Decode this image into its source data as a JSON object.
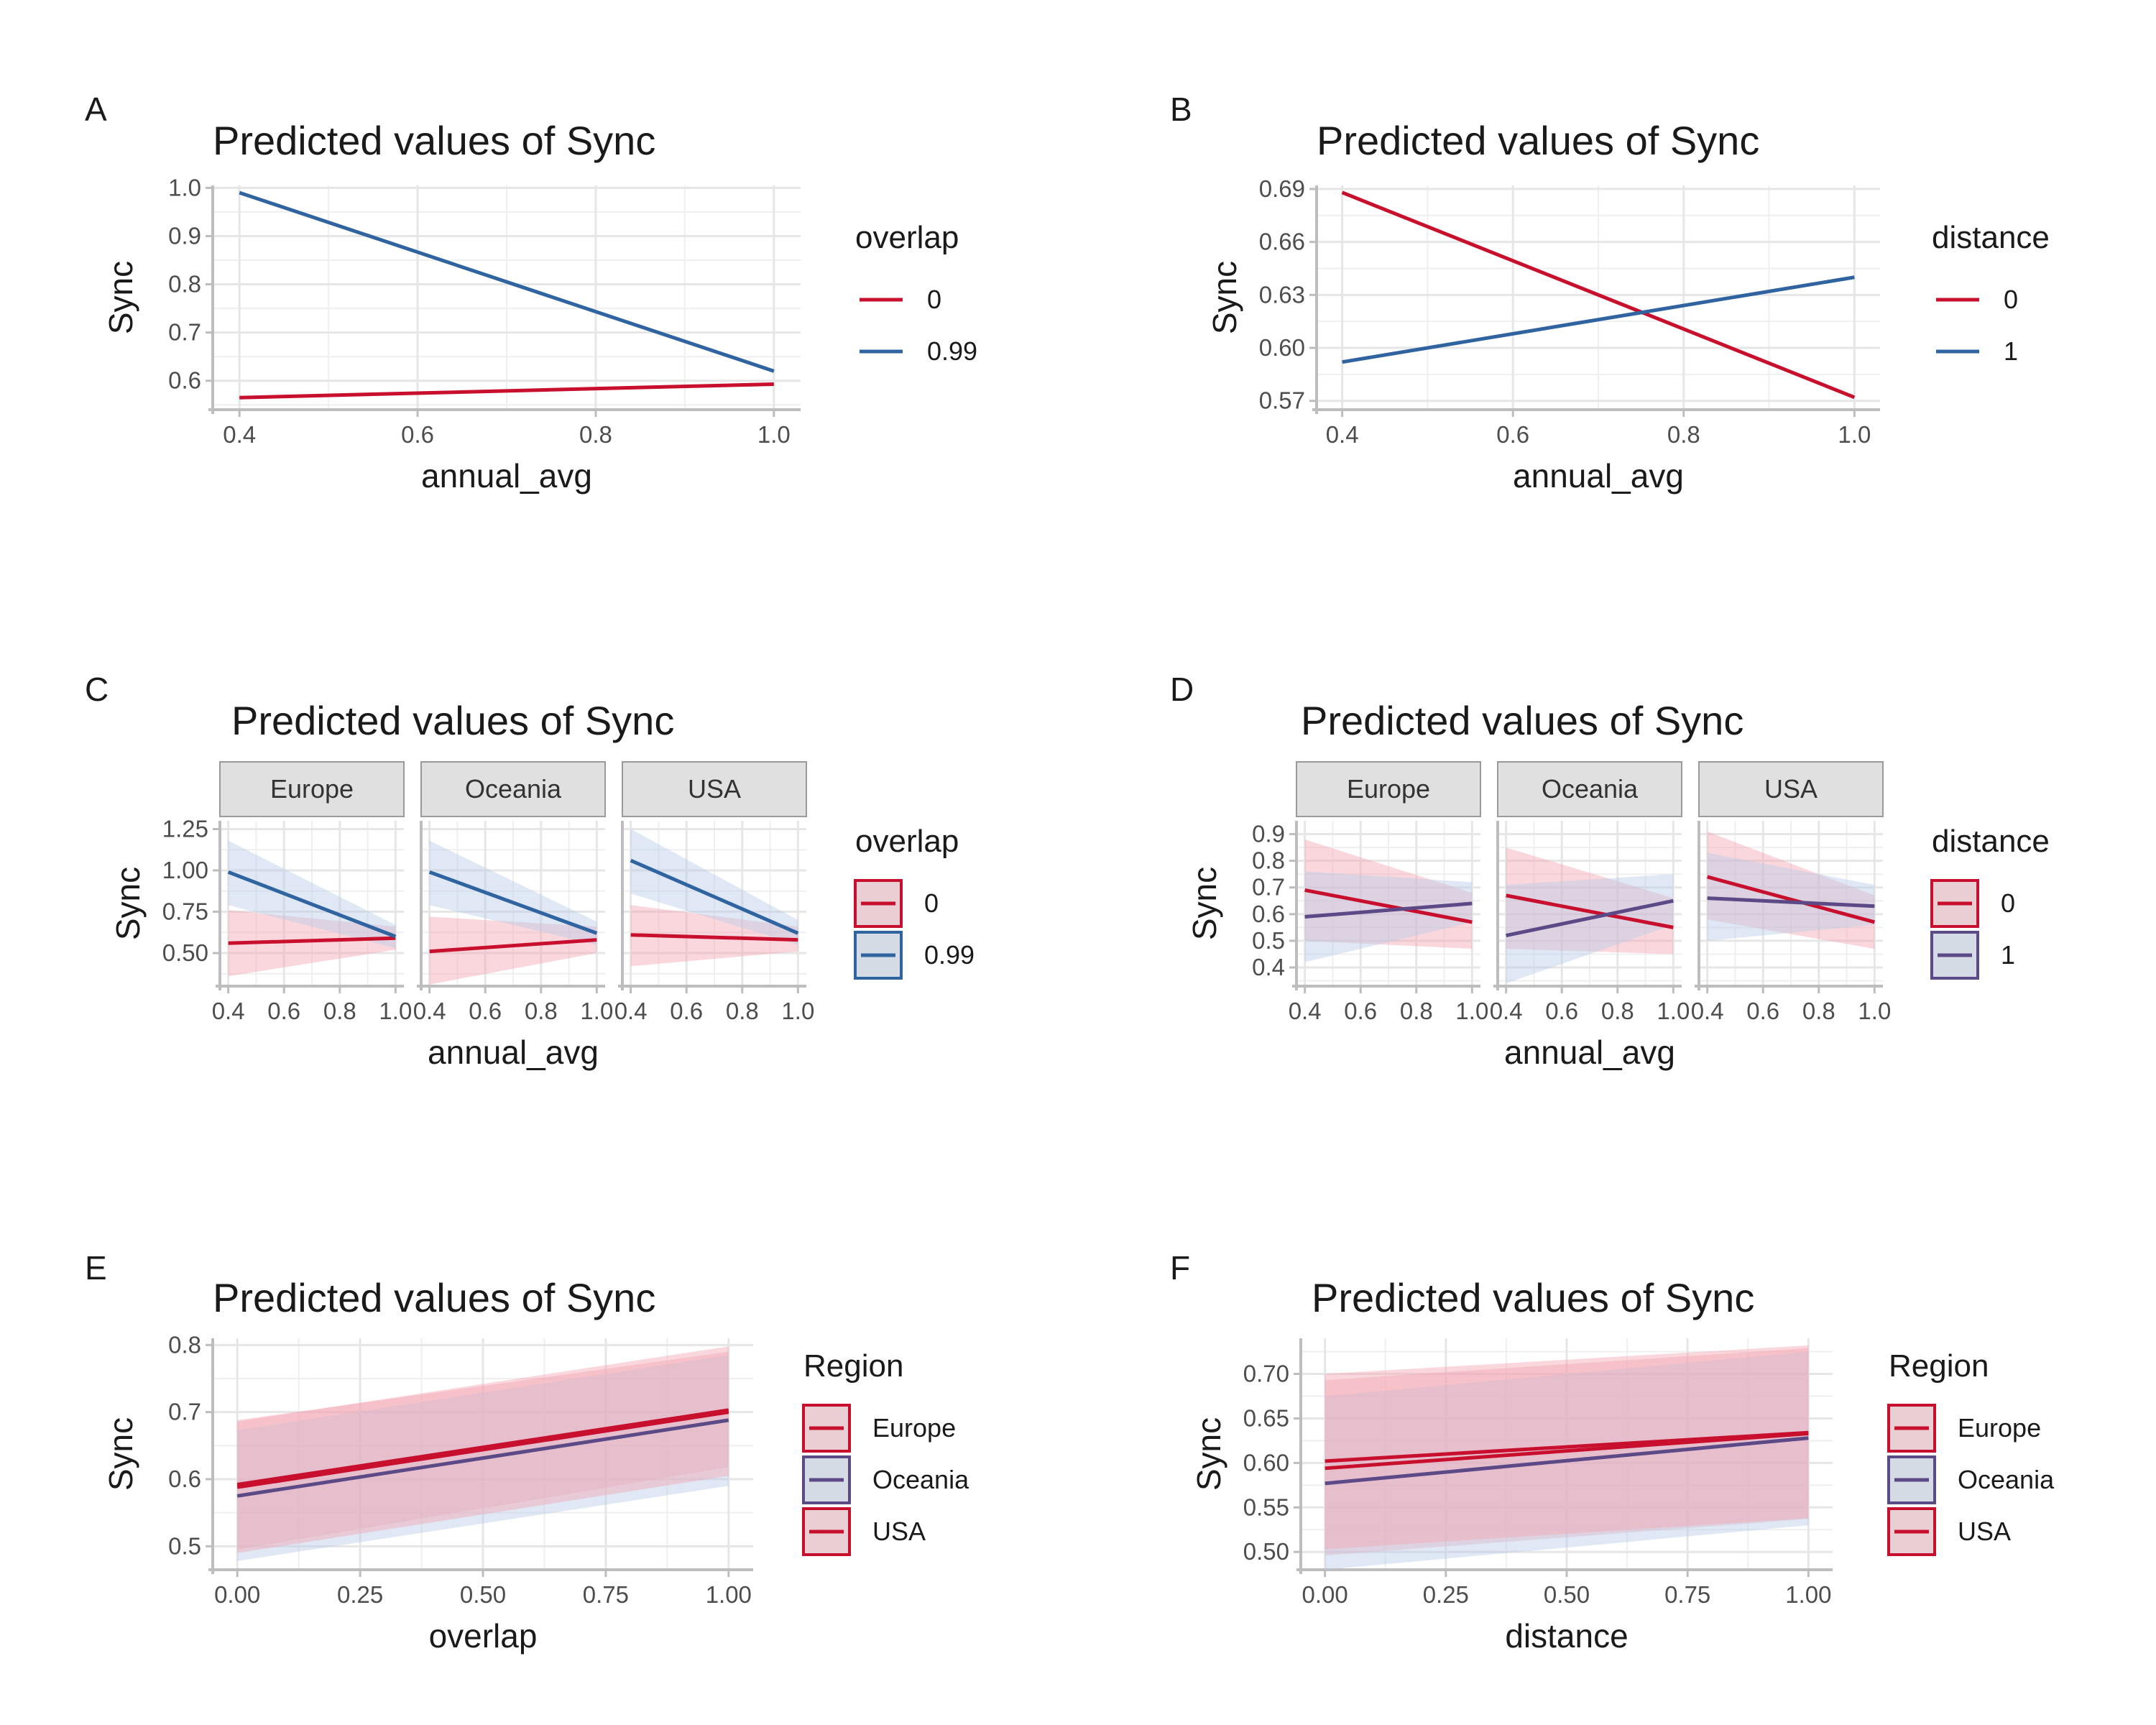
{
  "colors": {
    "red": "#c8102e",
    "blue": "#2f64a0",
    "purple": "#5b4a86",
    "band_red": "#f4a7b4",
    "band_blue": "#b9cbe6",
    "grid": "#e6e6e6",
    "axis": "#bdbdbd",
    "strip_fill": "#e0e0e0",
    "strip_border": "#9a9a9a",
    "tick_text": "#4d4d4d",
    "text": "#1a1a1a"
  },
  "chart_data": [
    {
      "panel": "A",
      "type": "line",
      "title": "Predicted values of Sync",
      "xlabel": "annual_avg",
      "ylabel": "Sync",
      "xlim": [
        0.37,
        1.03
      ],
      "ylim": [
        0.54,
        1.005
      ],
      "xticks": [
        0.4,
        0.6,
        0.8,
        1.0
      ],
      "xtick_labels": [
        "0.4",
        "0.6",
        "0.8",
        "1.0"
      ],
      "yticks": [
        0.6,
        0.7,
        0.8,
        0.9,
        1.0
      ],
      "ytick_labels": [
        "0.6",
        "0.7",
        "0.8",
        "0.9",
        "1.0"
      ],
      "legend_title": "overlap",
      "legend_style": "line",
      "series": [
        {
          "name": "0",
          "color": "#c8102e",
          "x": [
            0.4,
            1.0
          ],
          "y": [
            0.565,
            0.593
          ]
        },
        {
          "name": "0.99",
          "color": "#2f64a0",
          "x": [
            0.4,
            1.0
          ],
          "y": [
            0.99,
            0.62
          ]
        }
      ]
    },
    {
      "panel": "B",
      "type": "line",
      "title": "Predicted values of Sync",
      "xlabel": "annual_avg",
      "ylabel": "Sync",
      "xlim": [
        0.37,
        1.03
      ],
      "ylim": [
        0.565,
        0.692
      ],
      "xticks": [
        0.4,
        0.6,
        0.8,
        1.0
      ],
      "xtick_labels": [
        "0.4",
        "0.6",
        "0.8",
        "1.0"
      ],
      "yticks": [
        0.57,
        0.6,
        0.63,
        0.66,
        0.69
      ],
      "ytick_labels": [
        "0.57",
        "0.60",
        "0.63",
        "0.66",
        "0.69"
      ],
      "legend_title": "distance",
      "legend_style": "line",
      "series": [
        {
          "name": "0",
          "color": "#c8102e",
          "x": [
            0.4,
            1.0
          ],
          "y": [
            0.688,
            0.572
          ]
        },
        {
          "name": "1",
          "color": "#2f64a0",
          "x": [
            0.4,
            1.0
          ],
          "y": [
            0.592,
            0.64
          ]
        }
      ]
    },
    {
      "panel": "C",
      "type": "line",
      "title": "Predicted values of Sync",
      "xlabel": "annual_avg",
      "ylabel": "Sync",
      "xlim": [
        0.37,
        1.03
      ],
      "ylim": [
        0.3,
        1.3
      ],
      "xticks": [
        0.4,
        0.6,
        0.8,
        1.0
      ],
      "xtick_labels": [
        "0.4",
        "0.6",
        "0.8",
        "1.0"
      ],
      "yticks": [
        0.5,
        0.75,
        1.0,
        1.25
      ],
      "ytick_labels": [
        "0.50",
        "0.75",
        "1.00",
        "1.25"
      ],
      "legend_title": "overlap",
      "legend_style": "box",
      "facets": [
        {
          "name": "Europe",
          "series": [
            {
              "name": "0",
              "color": "#c8102e",
              "band": "#f4a7b4",
              "x": [
                0.4,
                1.0
              ],
              "y": [
                0.56,
                0.59
              ],
              "lo": [
                0.36,
                0.52
              ],
              "hi": [
                0.76,
                0.66
              ]
            },
            {
              "name": "0.99",
              "color": "#2f64a0",
              "band": "#b9cbe6",
              "x": [
                0.4,
                1.0
              ],
              "y": [
                0.99,
                0.6
              ],
              "lo": [
                0.79,
                0.53
              ],
              "hi": [
                1.18,
                0.67
              ]
            }
          ]
        },
        {
          "name": "Oceania",
          "series": [
            {
              "name": "0",
              "color": "#c8102e",
              "band": "#f4a7b4",
              "x": [
                0.4,
                1.0
              ],
              "y": [
                0.51,
                0.58
              ],
              "lo": [
                0.31,
                0.5
              ],
              "hi": [
                0.72,
                0.66
              ]
            },
            {
              "name": "0.99",
              "color": "#2f64a0",
              "band": "#b9cbe6",
              "x": [
                0.4,
                1.0
              ],
              "y": [
                0.99,
                0.62
              ],
              "lo": [
                0.79,
                0.55
              ],
              "hi": [
                1.18,
                0.69
              ]
            }
          ]
        },
        {
          "name": "USA",
          "series": [
            {
              "name": "0",
              "color": "#c8102e",
              "band": "#f4a7b4",
              "x": [
                0.4,
                1.0
              ],
              "y": [
                0.61,
                0.58
              ],
              "lo": [
                0.42,
                0.51
              ],
              "hi": [
                0.79,
                0.66
              ]
            },
            {
              "name": "0.99",
              "color": "#2f64a0",
              "band": "#b9cbe6",
              "x": [
                0.4,
                1.0
              ],
              "y": [
                1.06,
                0.62
              ],
              "lo": [
                0.86,
                0.55
              ],
              "hi": [
                1.25,
                0.7
              ]
            }
          ]
        }
      ]
    },
    {
      "panel": "D",
      "type": "line",
      "title": "Predicted values of Sync",
      "xlabel": "annual_avg",
      "ylabel": "Sync",
      "xlim": [
        0.37,
        1.03
      ],
      "ylim": [
        0.33,
        0.95
      ],
      "xticks": [
        0.4,
        0.6,
        0.8,
        1.0
      ],
      "xtick_labels": [
        "0.4",
        "0.6",
        "0.8",
        "1.0"
      ],
      "yticks": [
        0.4,
        0.5,
        0.6,
        0.7,
        0.8,
        0.9
      ],
      "ytick_labels": [
        "0.4",
        "0.5",
        "0.6",
        "0.7",
        "0.8",
        "0.9"
      ],
      "legend_title": "distance",
      "legend_style": "box",
      "facets": [
        {
          "name": "Europe",
          "series": [
            {
              "name": "0",
              "color": "#c8102e",
              "band": "#f4a7b4",
              "x": [
                0.4,
                1.0
              ],
              "y": [
                0.69,
                0.57
              ],
              "lo": [
                0.5,
                0.47
              ],
              "hi": [
                0.88,
                0.68
              ]
            },
            {
              "name": "1",
              "color": "#5b4a86",
              "band": "#b9cbe6",
              "x": [
                0.4,
                1.0
              ],
              "y": [
                0.59,
                0.64
              ],
              "lo": [
                0.42,
                0.57
              ],
              "hi": [
                0.76,
                0.72
              ]
            }
          ]
        },
        {
          "name": "Oceania",
          "series": [
            {
              "name": "0",
              "color": "#c8102e",
              "band": "#f4a7b4",
              "x": [
                0.4,
                1.0
              ],
              "y": [
                0.67,
                0.55
              ],
              "lo": [
                0.47,
                0.45
              ],
              "hi": [
                0.85,
                0.66
              ]
            },
            {
              "name": "1",
              "color": "#5b4a86",
              "band": "#b9cbe6",
              "x": [
                0.4,
                1.0
              ],
              "y": [
                0.52,
                0.65
              ],
              "lo": [
                0.34,
                0.56
              ],
              "hi": [
                0.71,
                0.75
              ]
            }
          ]
        },
        {
          "name": "USA",
          "series": [
            {
              "name": "0",
              "color": "#c8102e",
              "band": "#f4a7b4",
              "x": [
                0.4,
                1.0
              ],
              "y": [
                0.74,
                0.57
              ],
              "lo": [
                0.58,
                0.47
              ],
              "hi": [
                0.91,
                0.67
              ]
            },
            {
              "name": "1",
              "color": "#5b4a86",
              "band": "#b9cbe6",
              "x": [
                0.4,
                1.0
              ],
              "y": [
                0.66,
                0.63
              ],
              "lo": [
                0.5,
                0.56
              ],
              "hi": [
                0.83,
                0.71
              ]
            }
          ]
        }
      ]
    },
    {
      "panel": "E",
      "type": "line",
      "title": "Predicted values of Sync",
      "xlabel": "overlap",
      "ylabel": "Sync",
      "xlim": [
        -0.05,
        1.05
      ],
      "ylim": [
        0.465,
        0.81
      ],
      "xticks": [
        0.0,
        0.25,
        0.5,
        0.75,
        1.0
      ],
      "xtick_labels": [
        "0.00",
        "0.25",
        "0.50",
        "0.75",
        "1.00"
      ],
      "yticks": [
        0.5,
        0.6,
        0.7,
        0.8
      ],
      "ytick_labels": [
        "0.5",
        "0.6",
        "0.7",
        "0.8"
      ],
      "legend_title": "Region",
      "legend_style": "box",
      "series": [
        {
          "name": "Europe",
          "color": "#c8102e",
          "band": "#f4a7b4",
          "x": [
            0.0,
            1.0
          ],
          "y": [
            0.592,
            0.703
          ],
          "lo": [
            0.495,
            0.618
          ],
          "hi": [
            0.688,
            0.79
          ]
        },
        {
          "name": "Oceania",
          "color": "#5b4a86",
          "band": "#b9cbe6",
          "x": [
            0.0,
            1.0
          ],
          "y": [
            0.575,
            0.688
          ],
          "lo": [
            0.478,
            0.59
          ],
          "hi": [
            0.673,
            0.785
          ]
        },
        {
          "name": "USA",
          "color": "#c8102e",
          "band": "#f4a7b4",
          "x": [
            0.0,
            1.0
          ],
          "y": [
            0.588,
            0.7
          ],
          "lo": [
            0.49,
            0.605
          ],
          "hi": [
            0.686,
            0.798
          ]
        }
      ]
    },
    {
      "panel": "F",
      "type": "line",
      "title": "Predicted values of Sync",
      "xlabel": "distance",
      "ylabel": "Sync",
      "xlim": [
        -0.05,
        1.05
      ],
      "ylim": [
        0.48,
        0.74
      ],
      "xticks": [
        0.0,
        0.25,
        0.5,
        0.75,
        1.0
      ],
      "xtick_labels": [
        "0.00",
        "0.25",
        "0.50",
        "0.75",
        "1.00"
      ],
      "yticks": [
        0.5,
        0.55,
        0.6,
        0.65,
        0.7
      ],
      "ytick_labels": [
        "0.50",
        "0.55",
        "0.60",
        "0.65",
        "0.70"
      ],
      "legend_title": "Region",
      "legend_style": "box",
      "series": [
        {
          "name": "Europe",
          "color": "#c8102e",
          "band": "#f4a7b4",
          "x": [
            0.0,
            1.0
          ],
          "y": [
            0.594,
            0.633
          ],
          "lo": [
            0.496,
            0.537
          ],
          "hi": [
            0.693,
            0.729
          ]
        },
        {
          "name": "Oceania",
          "color": "#5b4a86",
          "band": "#b9cbe6",
          "x": [
            0.0,
            1.0
          ],
          "y": [
            0.577,
            0.628
          ],
          "lo": [
            0.48,
            0.53
          ],
          "hi": [
            0.675,
            0.725
          ]
        },
        {
          "name": "USA",
          "color": "#c8102e",
          "band": "#f4a7b4",
          "x": [
            0.0,
            1.0
          ],
          "y": [
            0.602,
            0.634
          ],
          "lo": [
            0.503,
            0.538
          ],
          "hi": [
            0.7,
            0.732
          ]
        }
      ]
    }
  ]
}
